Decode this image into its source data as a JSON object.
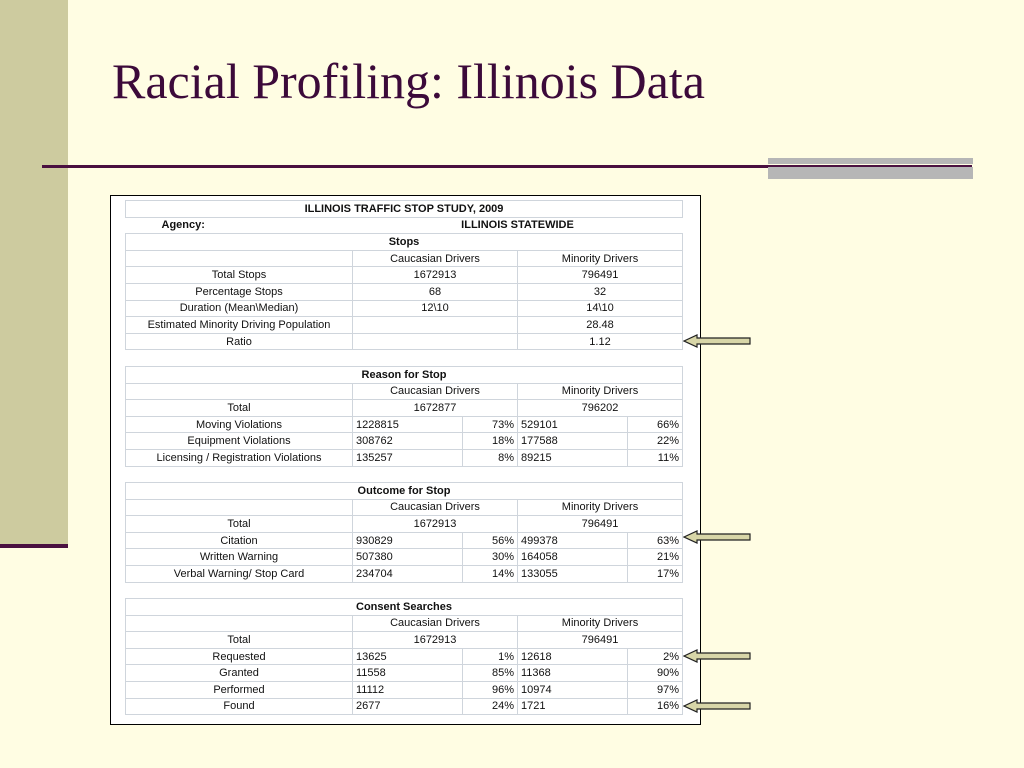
{
  "slide": {
    "title": "Racial Profiling: Illinois Data"
  },
  "table": {
    "heading": "ILLINOIS TRAFFIC STOP STUDY, 2009",
    "agency_label": "Agency:",
    "agency_value": "ILLINOIS STATEWIDE",
    "stops": {
      "title": "Stops",
      "col1": "Caucasian Drivers",
      "col2": "Minority Drivers",
      "rows": [
        {
          "label": "Total Stops",
          "c": "1672913",
          "m": "796491"
        },
        {
          "label": "Percentage Stops",
          "c": "68",
          "m": "32"
        },
        {
          "label": "Duration (Mean\\Median)",
          "c": "12\\10",
          "m": "14\\10"
        },
        {
          "label": "Estimated Minority Driving Population",
          "c": "",
          "m": "28.48"
        },
        {
          "label": "Ratio",
          "c": "",
          "m": "1.12"
        }
      ]
    },
    "reason": {
      "title": "Reason for Stop",
      "col1": "Caucasian Drivers",
      "col2": "Minority Drivers",
      "total_label": "Total",
      "total_c": "1672877",
      "total_m": "796202",
      "rows": [
        {
          "label": "Moving Violations",
          "c": "1228815",
          "cp": "73%",
          "m": "529101",
          "mp": "66%"
        },
        {
          "label": "Equipment Violations",
          "c": "308762",
          "cp": "18%",
          "m": "177588",
          "mp": "22%"
        },
        {
          "label": "Licensing / Registration Violations",
          "c": "135257",
          "cp": "8%",
          "m": "89215",
          "mp": "11%"
        }
      ]
    },
    "outcome": {
      "title": "Outcome for Stop",
      "col1": "Caucasian Drivers",
      "col2": "Minority Drivers",
      "total_label": "Total",
      "total_c": "1672913",
      "total_m": "796491",
      "rows": [
        {
          "label": "Citation",
          "c": "930829",
          "cp": "56%",
          "m": "499378",
          "mp": "63%"
        },
        {
          "label": "Written Warning",
          "c": "507380",
          "cp": "30%",
          "m": "164058",
          "mp": "21%"
        },
        {
          "label": "Verbal Warning/ Stop Card",
          "c": "234704",
          "cp": "14%",
          "m": "133055",
          "mp": "17%"
        }
      ]
    },
    "consent": {
      "title": "Consent Searches",
      "col1": "Caucasian Drivers",
      "col2": "Minority Drivers",
      "total_label": "Total",
      "total_c": "1672913",
      "total_m": "796491",
      "rows": [
        {
          "label": "Requested",
          "c": "13625",
          "cp": "1%",
          "m": "12618",
          "mp": "2%"
        },
        {
          "label": "Granted",
          "c": "11558",
          "cp": "85%",
          "m": "11368",
          "mp": "90%"
        },
        {
          "label": "Performed",
          "c": "11112",
          "cp": "96%",
          "m": "10974",
          "mp": "97%"
        },
        {
          "label": "Found",
          "c": "2677",
          "cp": "24%",
          "m": "1721",
          "mp": "16%"
        }
      ]
    }
  },
  "colors": {
    "background": "#fffde3",
    "accent_bar": "#cdcb9f",
    "title": "#3c0a3a",
    "rule": "#4a1040",
    "arrow_fill": "#d8d6a8"
  },
  "icons": {
    "pointer": "left-arrow-icon"
  }
}
